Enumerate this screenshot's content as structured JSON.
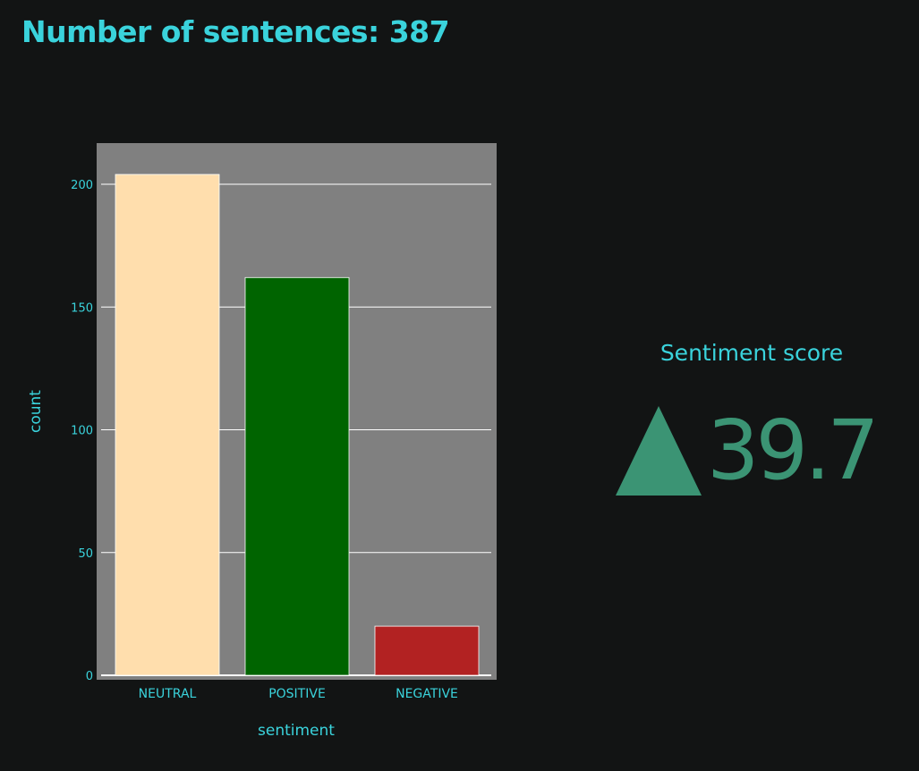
{
  "header": {
    "title": "Number of sentences: 387"
  },
  "metric": {
    "label": "Sentiment score",
    "value": "39.7",
    "direction": "up",
    "arrow_icon": "triangle-up-icon"
  },
  "colors": {
    "background": "#121414",
    "accent_text": "#3ad3dc",
    "plot_background": "#808080",
    "gridline": "#ffffff",
    "metric_color": "#3b9474"
  },
  "chart_data": {
    "type": "bar",
    "categories": [
      "NEUTRAL",
      "POSITIVE",
      "NEGATIVE"
    ],
    "values": [
      204,
      162,
      20
    ],
    "bar_colors": [
      "#ffdead",
      "#006400",
      "#b22222"
    ],
    "xlabel": "sentiment",
    "ylabel": "count",
    "ylim": [
      0,
      217
    ],
    "yticks": [
      0,
      50,
      100,
      150,
      200
    ],
    "grid": true,
    "legend": false
  }
}
